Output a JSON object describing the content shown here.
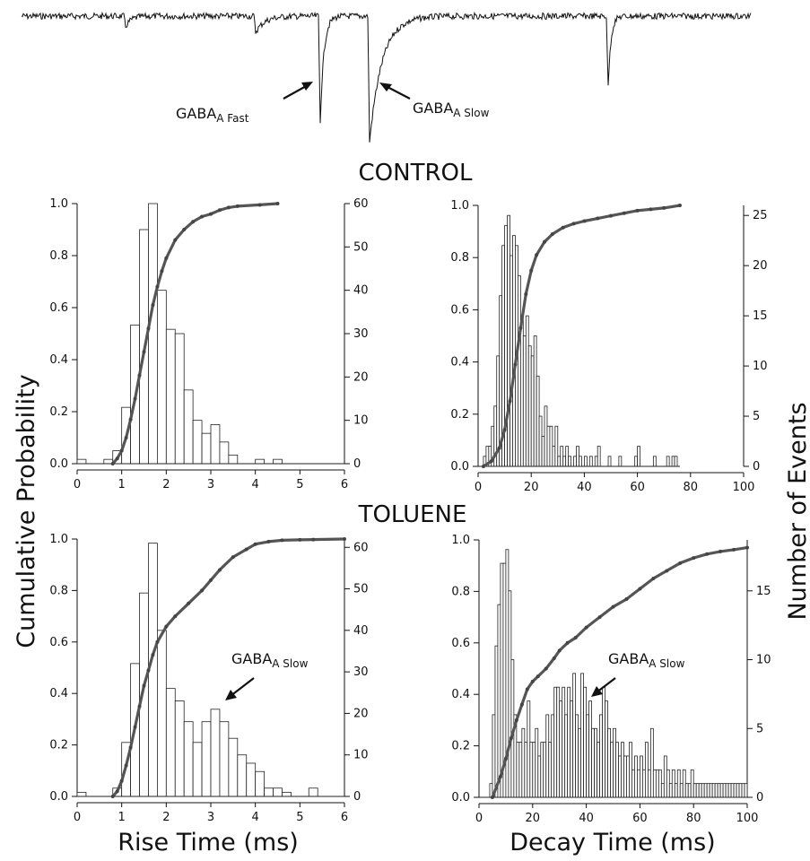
{
  "trace": {
    "label_fast": {
      "main": "GABA",
      "sub": "A Fast"
    },
    "label_slow": {
      "main": "GABA",
      "sub": "A Slow"
    }
  },
  "conditions": {
    "control": "CONTROL",
    "toluene": "TOLUENE"
  },
  "axis_titles": {
    "left": "Cumulative Probability",
    "right": "Number of Events",
    "bottom_left": "Rise Time  (ms)",
    "bottom_right": "Decay Time  (ms)"
  },
  "annotation_slow": {
    "main": "GABA",
    "sub": "A Slow"
  },
  "chart_data": [
    {
      "type": "bar",
      "panel": "control-rise",
      "condition": "CONTROL",
      "x_range": [
        0,
        6
      ],
      "xticks": [
        0,
        1,
        2,
        3,
        4,
        5,
        6
      ],
      "y_left_range": [
        0,
        1.0
      ],
      "y_left_ticks": [
        0.0,
        0.2,
        0.4,
        0.6,
        0.8,
        1.0
      ],
      "y_right_range": [
        0,
        60
      ],
      "y_right_ticks": [
        0,
        10,
        20,
        30,
        40,
        50,
        60
      ],
      "bin_width": 0.2,
      "histogram": {
        "x": [
          0.1,
          0.3,
          0.5,
          0.7,
          0.9,
          1.1,
          1.3,
          1.5,
          1.7,
          1.9,
          2.1,
          2.3,
          2.5,
          2.7,
          2.9,
          3.1,
          3.3,
          3.5,
          3.7,
          3.9,
          4.1,
          4.3,
          4.5,
          4.7,
          4.9,
          5.1,
          5.3,
          5.5,
          5.7
        ],
        "counts": [
          1,
          0,
          0,
          1,
          3,
          13,
          32,
          54,
          60,
          40,
          31,
          30,
          17,
          10,
          7,
          9,
          5,
          2,
          0,
          0,
          1,
          0,
          1,
          0,
          0,
          0,
          0,
          0,
          0
        ]
      },
      "cumulative": {
        "x": [
          0.8,
          0.9,
          1.0,
          1.1,
          1.2,
          1.3,
          1.4,
          1.5,
          1.6,
          1.7,
          1.8,
          1.9,
          2.0,
          2.2,
          2.4,
          2.6,
          2.8,
          3.0,
          3.2,
          3.4,
          3.6,
          4.1,
          4.5
        ],
        "y": [
          0.0,
          0.02,
          0.05,
          0.1,
          0.17,
          0.25,
          0.34,
          0.43,
          0.52,
          0.61,
          0.68,
          0.74,
          0.79,
          0.86,
          0.9,
          0.93,
          0.95,
          0.96,
          0.975,
          0.985,
          0.99,
          0.995,
          1.0
        ]
      }
    },
    {
      "type": "bar",
      "panel": "control-decay",
      "condition": "CONTROL",
      "x_range": [
        0,
        100
      ],
      "xticks": [
        0,
        20,
        40,
        60,
        80,
        100
      ],
      "y_left_range": [
        0,
        1.0
      ],
      "y_left_ticks": [
        0.0,
        0.2,
        0.4,
        0.6,
        0.8,
        1.0
      ],
      "y_right_range": [
        0,
        26
      ],
      "y_right_ticks": [
        0,
        5,
        10,
        15,
        20,
        25
      ],
      "bin_width": 1,
      "histogram": {
        "x": [
          2.5,
          3.5,
          4.5,
          5.5,
          6.5,
          7.5,
          8.5,
          9.5,
          10.5,
          11.5,
          12.5,
          13.5,
          14.5,
          15.5,
          16.5,
          17.5,
          18.5,
          19.5,
          20.5,
          21.5,
          22.5,
          23.5,
          24.5,
          25.5,
          26.5,
          27.5,
          28.5,
          29.5,
          30.5,
          31.5,
          32.5,
          33.5,
          34.5,
          35.5,
          36.5,
          37.5,
          38.5,
          39.5,
          40.5,
          41.5,
          42.5,
          43.5,
          44.5,
          45.5,
          46.5,
          47.5,
          48.5,
          49.5,
          50.5,
          51.5,
          52.5,
          53.5,
          54.5,
          55.5,
          56.5,
          57.5,
          58.5,
          59.5,
          60.5,
          61.5,
          62.5,
          63.5,
          64.5,
          65.5,
          66.5,
          67.5,
          68.5,
          69.5,
          70.5,
          71.5,
          72.5,
          73.5,
          74.5,
          75.5
        ],
        "counts": [
          1,
          2,
          2,
          4,
          6,
          11,
          17,
          22,
          24,
          25,
          21,
          23,
          22,
          19,
          15,
          13,
          15,
          12,
          11,
          13,
          9,
          5,
          3,
          6,
          4,
          4,
          2,
          4,
          1,
          2,
          1,
          2,
          1,
          0,
          1,
          2,
          1,
          0,
          1,
          0,
          1,
          0,
          1,
          2,
          0,
          0,
          0,
          1,
          0,
          0,
          0,
          1,
          0,
          0,
          0,
          0,
          0,
          1,
          2,
          0,
          0,
          0,
          0,
          0,
          1,
          0,
          0,
          0,
          0,
          1,
          0,
          1,
          1,
          0
        ],
        "max_x": 76
      },
      "cumulative": {
        "x": [
          2,
          5,
          8,
          10,
          12,
          14,
          16,
          18,
          20,
          22,
          25,
          28,
          32,
          36,
          40,
          45,
          50,
          55,
          60,
          65,
          70,
          76
        ],
        "y": [
          0.0,
          0.02,
          0.07,
          0.14,
          0.25,
          0.39,
          0.53,
          0.66,
          0.75,
          0.81,
          0.86,
          0.89,
          0.915,
          0.93,
          0.94,
          0.95,
          0.96,
          0.97,
          0.98,
          0.985,
          0.99,
          1.0
        ]
      }
    },
    {
      "type": "bar",
      "panel": "toluene-rise",
      "condition": "TOLUENE",
      "x_range": [
        0,
        6
      ],
      "xticks": [
        0,
        1,
        2,
        3,
        4,
        5,
        6
      ],
      "y_left_range": [
        0,
        1.0
      ],
      "y_left_ticks": [
        0.0,
        0.2,
        0.4,
        0.6,
        0.8,
        1.0
      ],
      "y_right_range": [
        0,
        62
      ],
      "y_right_ticks": [
        0,
        10,
        20,
        30,
        40,
        50,
        60
      ],
      "bin_width": 0.2,
      "histogram": {
        "x": [
          0.1,
          0.3,
          0.5,
          0.7,
          0.9,
          1.1,
          1.3,
          1.5,
          1.7,
          1.9,
          2.1,
          2.3,
          2.5,
          2.7,
          2.9,
          3.1,
          3.3,
          3.5,
          3.7,
          3.9,
          4.1,
          4.3,
          4.5,
          4.7,
          4.9,
          5.1,
          5.3,
          5.5,
          5.7
        ],
        "counts": [
          1,
          0,
          0,
          0,
          2,
          13,
          32,
          49,
          61,
          40,
          26,
          23,
          18,
          13,
          18,
          21,
          18,
          14,
          10,
          8,
          6,
          2,
          2,
          1,
          0,
          0,
          2,
          0,
          0
        ]
      },
      "cumulative": {
        "x": [
          0.8,
          0.9,
          1.0,
          1.1,
          1.2,
          1.3,
          1.4,
          1.5,
          1.6,
          1.7,
          1.8,
          2.0,
          2.2,
          2.5,
          2.8,
          3.0,
          3.2,
          3.5,
          3.8,
          4.0,
          4.3,
          4.6,
          5.0,
          5.3,
          6.0
        ],
        "y": [
          0.0,
          0.02,
          0.06,
          0.12,
          0.19,
          0.27,
          0.35,
          0.43,
          0.49,
          0.55,
          0.6,
          0.66,
          0.7,
          0.75,
          0.8,
          0.84,
          0.88,
          0.93,
          0.96,
          0.98,
          0.99,
          0.995,
          0.997,
          0.998,
          1.0
        ]
      },
      "annotation": "GABA A Slow"
    },
    {
      "type": "bar",
      "panel": "toluene-decay",
      "condition": "TOLUENE",
      "x_range": [
        0,
        100
      ],
      "xticks": [
        0,
        20,
        40,
        60,
        80,
        100
      ],
      "y_left_range": [
        0,
        1.0
      ],
      "y_left_ticks": [
        0.0,
        0.2,
        0.4,
        0.6,
        0.8,
        1.0
      ],
      "y_right_range": [
        0,
        18.7
      ],
      "y_right_ticks": [
        0,
        5,
        10,
        15
      ],
      "bin_width": 1,
      "histogram": {
        "x": [
          4.5,
          5.5,
          6.5,
          7.5,
          8.5,
          9.5,
          10.5,
          11.5,
          12.5,
          13.5,
          14.5,
          15.5,
          16.5,
          17.5,
          18.5,
          19.5,
          20.5,
          21.5,
          22.5,
          23.5,
          24.5,
          25.5,
          26.5,
          27.5,
          28.5,
          29.5,
          30.5,
          31.5,
          32.5,
          33.5,
          34.5,
          35.5,
          36.5,
          37.5,
          38.5,
          39.5,
          40.5,
          41.5,
          42.5,
          43.5,
          44.5,
          45.5,
          46.5,
          47.5,
          48.5,
          49.5,
          50.5,
          51.5,
          52.5,
          53.5,
          54.5,
          55.5,
          56.5,
          57.5,
          58.5,
          59.5,
          60.5,
          61.5,
          62.5,
          63.5,
          64.5,
          65.5,
          66.5,
          67.5,
          68.5,
          69.5,
          70.5,
          71.5,
          72.5,
          73.5,
          74.5,
          75.5,
          76.5,
          77.5,
          78.5,
          79.5,
          80.5,
          81.5,
          82.5,
          83.5,
          84.5,
          85.5,
          86.5,
          87.5,
          88.5,
          89.5,
          90.5,
          91.5,
          92.5,
          93.5,
          94.5,
          95.5,
          96.5,
          97.5,
          98.5,
          99.5
        ],
        "counts": [
          1,
          6,
          11,
          14,
          17,
          17,
          18,
          15,
          10,
          6,
          4,
          4,
          5,
          4,
          7,
          4,
          4,
          5,
          3,
          4,
          4,
          6,
          4,
          6,
          8,
          8,
          7,
          8,
          6,
          8,
          7,
          9,
          6,
          5,
          9,
          8,
          6,
          7,
          5,
          5,
          4,
          6,
          8,
          7,
          5,
          4,
          5,
          4,
          3,
          4,
          3,
          3,
          4,
          2,
          3,
          2,
          3,
          2,
          4,
          2,
          5,
          2,
          2,
          2,
          1,
          3,
          2,
          1,
          2,
          1,
          2,
          1,
          2,
          1,
          1,
          2,
          1,
          1,
          1,
          1,
          1,
          1,
          1,
          1,
          1,
          1,
          1,
          1,
          1,
          1,
          1,
          1,
          1,
          1,
          1,
          1
        ]
      },
      "cumulative": {
        "x": [
          5,
          8,
          10,
          12,
          14,
          16,
          18,
          20,
          22,
          25,
          28,
          30,
          33,
          36,
          40,
          45,
          50,
          55,
          60,
          65,
          70,
          75,
          80,
          85,
          90,
          95,
          100
        ],
        "y": [
          0.0,
          0.08,
          0.15,
          0.23,
          0.3,
          0.36,
          0.42,
          0.45,
          0.47,
          0.5,
          0.54,
          0.57,
          0.6,
          0.62,
          0.66,
          0.7,
          0.74,
          0.77,
          0.81,
          0.85,
          0.88,
          0.91,
          0.93,
          0.945,
          0.955,
          0.962,
          0.97
        ]
      },
      "annotation": "GABA A Slow"
    }
  ]
}
